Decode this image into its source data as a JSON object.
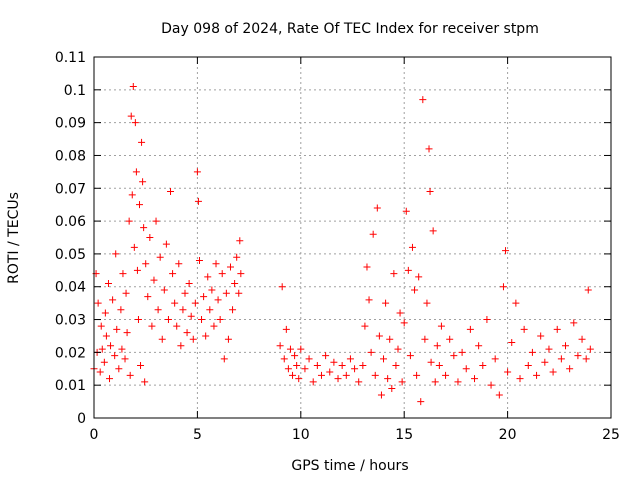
{
  "chart_data": {
    "type": "scatter",
    "title": "Day 098 of 2024, Rate Of TEC Index for receiver stpm",
    "xlabel": "GPS time / hours",
    "ylabel": "ROTI / TECUs",
    "xlim": [
      0,
      25
    ],
    "ylim": [
      0,
      0.11
    ],
    "x_ticks": [
      0,
      5,
      10,
      15,
      20,
      25
    ],
    "x_tick_labels": [
      "0",
      "5",
      "10",
      "15",
      "20",
      "25"
    ],
    "y_ticks": [
      0,
      0.01,
      0.02,
      0.03,
      0.04,
      0.05,
      0.06,
      0.07,
      0.08,
      0.09,
      0.1,
      0.11
    ],
    "y_tick_labels": [
      "0",
      "0.01",
      "0.02",
      "0.03",
      "0.04",
      "0.05",
      "0.06",
      "0.07",
      "0.08",
      "0.09",
      "0.1",
      "0.11"
    ],
    "grid": true,
    "marker": "+",
    "color": "#ff0000",
    "series": [
      {
        "name": "ROTI",
        "note": "approximate sample of plotted points (data gap ~7.2-9.0 h)",
        "points": [
          [
            0.0,
            0.015
          ],
          [
            0.1,
            0.044
          ],
          [
            0.15,
            0.02
          ],
          [
            0.2,
            0.035
          ],
          [
            0.3,
            0.014
          ],
          [
            0.35,
            0.028
          ],
          [
            0.4,
            0.021
          ],
          [
            0.5,
            0.017
          ],
          [
            0.55,
            0.032
          ],
          [
            0.6,
            0.025
          ],
          [
            0.7,
            0.041
          ],
          [
            0.75,
            0.012
          ],
          [
            0.8,
            0.022
          ],
          [
            0.9,
            0.036
          ],
          [
            1.0,
            0.019
          ],
          [
            1.05,
            0.05
          ],
          [
            1.1,
            0.027
          ],
          [
            1.2,
            0.015
          ],
          [
            1.3,
            0.033
          ],
          [
            1.35,
            0.021
          ],
          [
            1.4,
            0.044
          ],
          [
            1.5,
            0.018
          ],
          [
            1.55,
            0.038
          ],
          [
            1.6,
            0.026
          ],
          [
            1.7,
            0.06
          ],
          [
            1.75,
            0.013
          ],
          [
            1.8,
            0.092
          ],
          [
            1.85,
            0.068
          ],
          [
            1.9,
            0.101
          ],
          [
            1.95,
            0.052
          ],
          [
            2.0,
            0.09
          ],
          [
            2.05,
            0.075
          ],
          [
            2.1,
            0.045
          ],
          [
            2.15,
            0.03
          ],
          [
            2.2,
            0.065
          ],
          [
            2.25,
            0.016
          ],
          [
            2.3,
            0.084
          ],
          [
            2.35,
            0.072
          ],
          [
            2.4,
            0.058
          ],
          [
            2.45,
            0.011
          ],
          [
            2.5,
            0.047
          ],
          [
            2.6,
            0.037
          ],
          [
            2.7,
            0.055
          ],
          [
            2.8,
            0.028
          ],
          [
            2.9,
            0.042
          ],
          [
            3.0,
            0.06
          ],
          [
            3.1,
            0.033
          ],
          [
            3.2,
            0.049
          ],
          [
            3.3,
            0.024
          ],
          [
            3.4,
            0.039
          ],
          [
            3.5,
            0.053
          ],
          [
            3.6,
            0.03
          ],
          [
            3.7,
            0.069
          ],
          [
            3.8,
            0.044
          ],
          [
            3.9,
            0.035
          ],
          [
            4.0,
            0.028
          ],
          [
            4.1,
            0.047
          ],
          [
            4.2,
            0.022
          ],
          [
            4.3,
            0.033
          ],
          [
            4.4,
            0.038
          ],
          [
            4.5,
            0.026
          ],
          [
            4.6,
            0.041
          ],
          [
            4.7,
            0.031
          ],
          [
            4.8,
            0.024
          ],
          [
            4.9,
            0.035
          ],
          [
            5.0,
            0.075
          ],
          [
            5.05,
            0.066
          ],
          [
            5.1,
            0.048
          ],
          [
            5.2,
            0.03
          ],
          [
            5.3,
            0.037
          ],
          [
            5.4,
            0.025
          ],
          [
            5.5,
            0.043
          ],
          [
            5.6,
            0.033
          ],
          [
            5.7,
            0.039
          ],
          [
            5.8,
            0.028
          ],
          [
            5.9,
            0.047
          ],
          [
            6.0,
            0.036
          ],
          [
            6.1,
            0.03
          ],
          [
            6.2,
            0.044
          ],
          [
            6.3,
            0.018
          ],
          [
            6.4,
            0.038
          ],
          [
            6.5,
            0.024
          ],
          [
            6.6,
            0.046
          ],
          [
            6.7,
            0.033
          ],
          [
            6.8,
            0.041
          ],
          [
            6.9,
            0.049
          ],
          [
            7.0,
            0.038
          ],
          [
            7.05,
            0.054
          ],
          [
            7.1,
            0.044
          ],
          [
            9.0,
            0.022
          ],
          [
            9.1,
            0.04
          ],
          [
            9.2,
            0.018
          ],
          [
            9.3,
            0.027
          ],
          [
            9.4,
            0.015
          ],
          [
            9.5,
            0.021
          ],
          [
            9.6,
            0.013
          ],
          [
            9.7,
            0.019
          ],
          [
            9.8,
            0.016
          ],
          [
            9.9,
            0.012
          ],
          [
            10.0,
            0.021
          ],
          [
            10.2,
            0.015
          ],
          [
            10.4,
            0.018
          ],
          [
            10.6,
            0.011
          ],
          [
            10.8,
            0.016
          ],
          [
            11.0,
            0.013
          ],
          [
            11.2,
            0.019
          ],
          [
            11.4,
            0.014
          ],
          [
            11.6,
            0.017
          ],
          [
            11.8,
            0.012
          ],
          [
            12.0,
            0.016
          ],
          [
            12.2,
            0.013
          ],
          [
            12.4,
            0.018
          ],
          [
            12.6,
            0.015
          ],
          [
            12.8,
            0.011
          ],
          [
            13.0,
            0.016
          ],
          [
            13.1,
            0.028
          ],
          [
            13.2,
            0.046
          ],
          [
            13.3,
            0.036
          ],
          [
            13.4,
            0.02
          ],
          [
            13.5,
            0.056
          ],
          [
            13.6,
            0.013
          ],
          [
            13.7,
            0.064
          ],
          [
            13.8,
            0.025
          ],
          [
            13.9,
            0.007
          ],
          [
            14.0,
            0.018
          ],
          [
            14.1,
            0.035
          ],
          [
            14.2,
            0.012
          ],
          [
            14.3,
            0.024
          ],
          [
            14.4,
            0.009
          ],
          [
            14.5,
            0.044
          ],
          [
            14.6,
            0.016
          ],
          [
            14.7,
            0.021
          ],
          [
            14.8,
            0.032
          ],
          [
            14.9,
            0.011
          ],
          [
            15.0,
            0.029
          ],
          [
            15.1,
            0.063
          ],
          [
            15.2,
            0.045
          ],
          [
            15.3,
            0.019
          ],
          [
            15.4,
            0.052
          ],
          [
            15.5,
            0.039
          ],
          [
            15.6,
            0.013
          ],
          [
            15.7,
            0.043
          ],
          [
            15.8,
            0.005
          ],
          [
            15.9,
            0.097
          ],
          [
            16.0,
            0.024
          ],
          [
            16.1,
            0.035
          ],
          [
            16.2,
            0.082
          ],
          [
            16.25,
            0.069
          ],
          [
            16.3,
            0.017
          ],
          [
            16.4,
            0.057
          ],
          [
            16.5,
            0.011
          ],
          [
            16.6,
            0.022
          ],
          [
            16.7,
            0.016
          ],
          [
            16.8,
            0.028
          ],
          [
            17.0,
            0.013
          ],
          [
            17.2,
            0.024
          ],
          [
            17.4,
            0.019
          ],
          [
            17.6,
            0.011
          ],
          [
            17.8,
            0.02
          ],
          [
            18.0,
            0.015
          ],
          [
            18.2,
            0.027
          ],
          [
            18.4,
            0.012
          ],
          [
            18.6,
            0.022
          ],
          [
            18.8,
            0.016
          ],
          [
            19.0,
            0.03
          ],
          [
            19.2,
            0.01
          ],
          [
            19.4,
            0.018
          ],
          [
            19.6,
            0.007
          ],
          [
            19.8,
            0.04
          ],
          [
            19.9,
            0.051
          ],
          [
            20.0,
            0.014
          ],
          [
            20.2,
            0.023
          ],
          [
            20.4,
            0.035
          ],
          [
            20.6,
            0.012
          ],
          [
            20.8,
            0.027
          ],
          [
            21.0,
            0.016
          ],
          [
            21.2,
            0.02
          ],
          [
            21.4,
            0.013
          ],
          [
            21.6,
            0.025
          ],
          [
            21.8,
            0.017
          ],
          [
            22.0,
            0.021
          ],
          [
            22.2,
            0.014
          ],
          [
            22.4,
            0.027
          ],
          [
            22.6,
            0.018
          ],
          [
            22.8,
            0.022
          ],
          [
            23.0,
            0.015
          ],
          [
            23.2,
            0.029
          ],
          [
            23.4,
            0.019
          ],
          [
            23.6,
            0.024
          ],
          [
            23.8,
            0.018
          ],
          [
            23.9,
            0.039
          ],
          [
            24.0,
            0.021
          ]
        ]
      }
    ]
  }
}
